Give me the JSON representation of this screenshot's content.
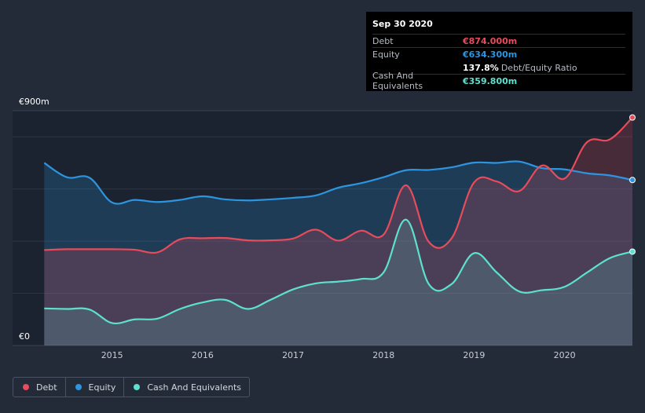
{
  "chart_data": {
    "type": "area",
    "title": "",
    "xlabel": "",
    "ylabel": "",
    "ylim": [
      0,
      900
    ],
    "y_tick_labels": [
      {
        "value": 900,
        "label": "€900m"
      },
      {
        "value": 0,
        "label": "€0"
      }
    ],
    "x_ticks": [
      {
        "value": 2015,
        "label": "2015"
      },
      {
        "value": 2016,
        "label": "2016"
      },
      {
        "value": 2017,
        "label": "2017"
      },
      {
        "value": 2018,
        "label": "2018"
      },
      {
        "value": 2019,
        "label": "2019"
      },
      {
        "value": 2020,
        "label": "2020"
      }
    ],
    "xlim": [
      2013.9,
      2020.75
    ],
    "series": [
      {
        "name": "Debt",
        "key": "debt",
        "color": "#e84b5b",
        "points": [
          [
            2014.25,
            366
          ],
          [
            2014.5,
            369
          ],
          [
            2014.75,
            369
          ],
          [
            2015.0,
            369
          ],
          [
            2015.25,
            367
          ],
          [
            2015.5,
            357
          ],
          [
            2015.75,
            407
          ],
          [
            2016.0,
            411
          ],
          [
            2016.25,
            412
          ],
          [
            2016.5,
            403
          ],
          [
            2016.75,
            403
          ],
          [
            2017.0,
            410
          ],
          [
            2017.25,
            444
          ],
          [
            2017.5,
            402
          ],
          [
            2017.75,
            440
          ],
          [
            2018.0,
            425
          ],
          [
            2018.25,
            614
          ],
          [
            2018.5,
            397
          ],
          [
            2018.75,
            410
          ],
          [
            2019.0,
            625
          ],
          [
            2019.25,
            629
          ],
          [
            2019.5,
            592
          ],
          [
            2019.75,
            690
          ],
          [
            2020.0,
            640
          ],
          [
            2020.25,
            780
          ],
          [
            2020.5,
            790
          ],
          [
            2020.75,
            874
          ]
        ]
      },
      {
        "name": "Equity",
        "key": "equity",
        "color": "#2d95e0",
        "points": [
          [
            2014.25,
            700
          ],
          [
            2014.5,
            645
          ],
          [
            2014.75,
            643
          ],
          [
            2015.0,
            548
          ],
          [
            2015.25,
            558
          ],
          [
            2015.5,
            550
          ],
          [
            2015.75,
            558
          ],
          [
            2016.0,
            572
          ],
          [
            2016.25,
            560
          ],
          [
            2016.5,
            556
          ],
          [
            2016.75,
            560
          ],
          [
            2017.0,
            566
          ],
          [
            2017.25,
            575
          ],
          [
            2017.5,
            605
          ],
          [
            2017.75,
            622
          ],
          [
            2018.0,
            645
          ],
          [
            2018.25,
            672
          ],
          [
            2018.5,
            673
          ],
          [
            2018.75,
            683
          ],
          [
            2019.0,
            701
          ],
          [
            2019.25,
            700
          ],
          [
            2019.5,
            705
          ],
          [
            2019.75,
            680
          ],
          [
            2020.0,
            675
          ],
          [
            2020.25,
            660
          ],
          [
            2020.5,
            652
          ],
          [
            2020.75,
            634.3
          ]
        ]
      },
      {
        "name": "Cash And Equivalents",
        "key": "cash",
        "color": "#5ee0cf",
        "points": [
          [
            2014.25,
            142
          ],
          [
            2014.5,
            140
          ],
          [
            2014.75,
            138
          ],
          [
            2015.0,
            86
          ],
          [
            2015.25,
            100
          ],
          [
            2015.5,
            103
          ],
          [
            2015.75,
            140
          ],
          [
            2016.0,
            165
          ],
          [
            2016.25,
            175
          ],
          [
            2016.5,
            140
          ],
          [
            2016.75,
            175
          ],
          [
            2017.0,
            215
          ],
          [
            2017.25,
            238
          ],
          [
            2017.5,
            245
          ],
          [
            2017.75,
            255
          ],
          [
            2018.0,
            280
          ],
          [
            2018.25,
            482
          ],
          [
            2018.5,
            235
          ],
          [
            2018.75,
            235
          ],
          [
            2019.0,
            354
          ],
          [
            2019.25,
            280
          ],
          [
            2019.5,
            207
          ],
          [
            2019.75,
            212
          ],
          [
            2020.0,
            225
          ],
          [
            2020.25,
            280
          ],
          [
            2020.5,
            335
          ],
          [
            2020.75,
            359.8
          ]
        ]
      }
    ],
    "legend": {
      "position": "bottom-left"
    }
  },
  "tooltip": {
    "date": "Sep 30 2020",
    "rows": [
      {
        "label": "Debt",
        "value": "€874.000m",
        "color": "#e84b5b"
      },
      {
        "label": "Equity",
        "value": "€634.300m",
        "color": "#2d95e0"
      },
      {
        "label": "",
        "value": "137.8%",
        "suffix": "Debt/Equity Ratio",
        "color": "#ffffff"
      },
      {
        "label": "Cash And Equivalents",
        "value": "€359.800m",
        "color": "#5ee0cf"
      }
    ]
  },
  "legend_items": [
    {
      "label": "Debt",
      "color": "#e84b5b"
    },
    {
      "label": "Equity",
      "color": "#2d95e0"
    },
    {
      "label": "Cash And Equivalents",
      "color": "#5ee0cf"
    }
  ]
}
